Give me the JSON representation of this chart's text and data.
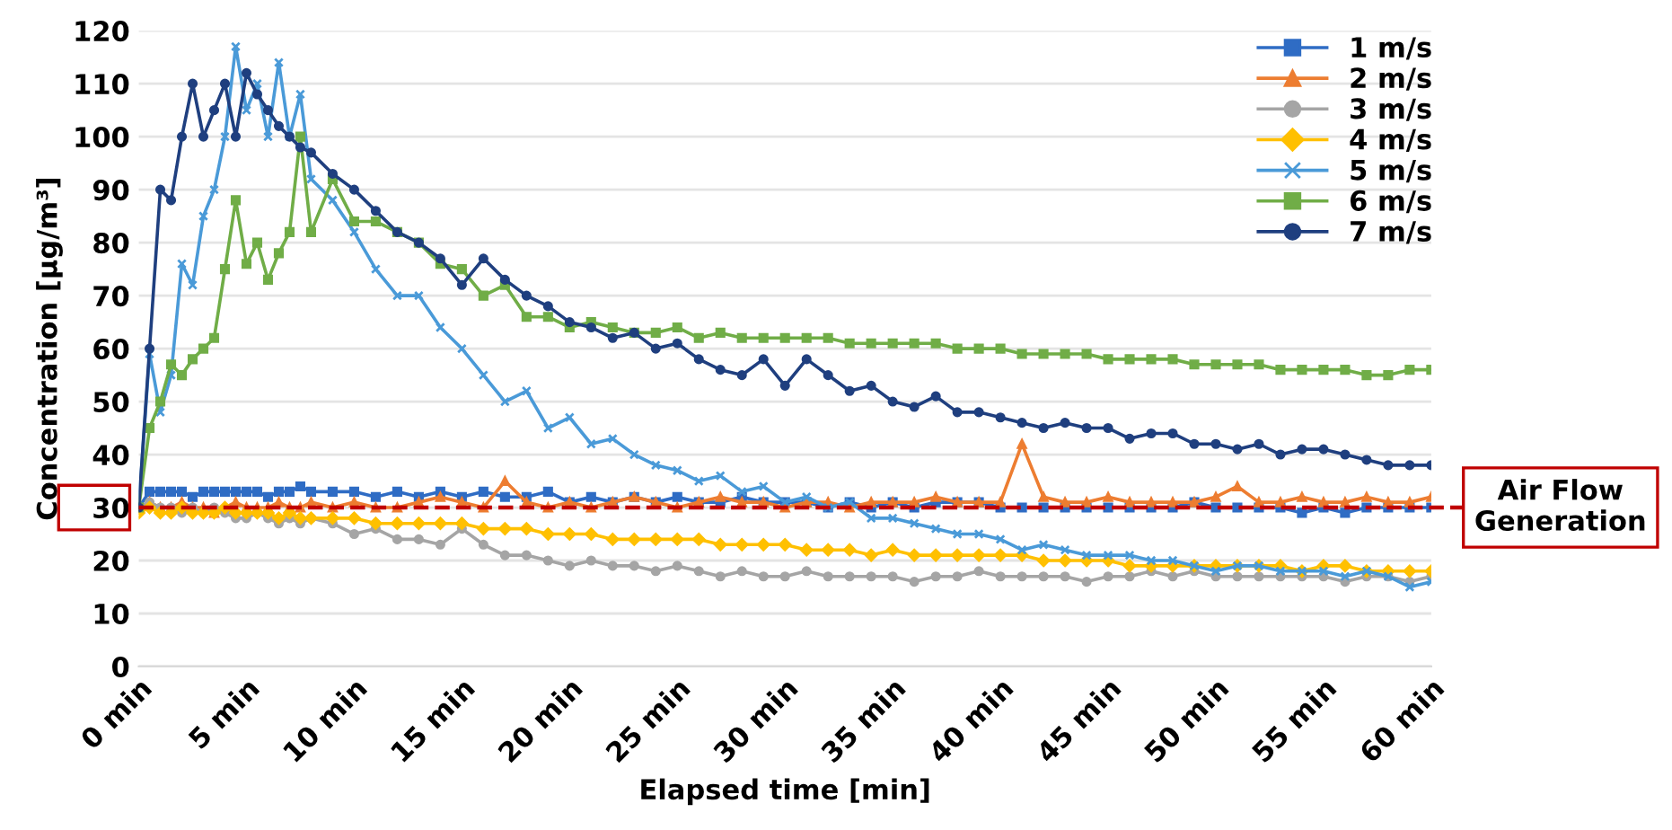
{
  "chart_data": {
    "type": "line",
    "xlabel": "Elapsed time [min]",
    "ylabel": "Concentration [μg/m³]",
    "x": [
      0,
      0.5,
      1,
      1.5,
      2,
      2.5,
      3,
      3.5,
      4,
      4.5,
      5,
      5.5,
      6,
      6.5,
      7,
      7.5,
      8,
      9,
      10,
      11,
      12,
      13,
      14,
      15,
      16,
      17,
      18,
      19,
      20,
      21,
      22,
      23,
      24,
      25,
      26,
      27,
      28,
      29,
      30,
      31,
      32,
      33,
      34,
      35,
      36,
      37,
      38,
      39,
      40,
      41,
      42,
      43,
      44,
      45,
      46,
      47,
      48,
      49,
      50,
      51,
      52,
      53,
      54,
      55,
      56,
      57,
      58,
      59,
      60
    ],
    "xlim": [
      0,
      60
    ],
    "xticks": [
      {
        "value": 0,
        "label": "0 min"
      },
      {
        "value": 5,
        "label": "5 min"
      },
      {
        "value": 10,
        "label": "10 min"
      },
      {
        "value": 15,
        "label": "15 min"
      },
      {
        "value": 20,
        "label": "20 min"
      },
      {
        "value": 25,
        "label": "25 min"
      },
      {
        "value": 30,
        "label": "30 min"
      },
      {
        "value": 35,
        "label": "35 min"
      },
      {
        "value": 40,
        "label": "40 min"
      },
      {
        "value": 45,
        "label": "45 min"
      },
      {
        "value": 50,
        "label": "50 min"
      },
      {
        "value": 55,
        "label": "55 min"
      },
      {
        "value": 60,
        "label": "60 min"
      }
    ],
    "ylim": [
      0,
      120
    ],
    "yticks": [
      0,
      10,
      20,
      30,
      40,
      50,
      60,
      70,
      80,
      90,
      100,
      110,
      120
    ],
    "grid": "y",
    "legend": "top right",
    "line_style": "solid",
    "ref_lines": [
      {
        "axis": "y",
        "value": 30,
        "label": "Air Flow\nGeneration",
        "color": "#c00000",
        "line_style": "dashed"
      }
    ],
    "series": [
      {
        "name": "1 m/s",
        "color": "#2f6cc4",
        "marker": "square",
        "values": [
          30,
          33,
          33,
          33,
          33,
          32,
          33,
          33,
          33,
          33,
          33,
          33,
          32,
          33,
          33,
          34,
          33,
          33,
          33,
          32,
          33,
          32,
          33,
          32,
          33,
          32,
          32,
          33,
          31,
          32,
          31,
          32,
          31,
          32,
          31,
          31,
          32,
          31,
          31,
          31,
          30,
          31,
          30,
          31,
          30,
          31,
          31,
          31,
          30,
          30,
          30,
          30,
          30,
          30,
          30,
          30,
          30,
          31,
          30,
          30,
          30,
          30,
          29,
          30,
          29,
          30,
          30,
          30,
          30
        ]
      },
      {
        "name": "2 m/s",
        "color": "#ed7d31",
        "marker": "triangle",
        "values": [
          30,
          31,
          30,
          30,
          31,
          30,
          30,
          29,
          30,
          31,
          30,
          30,
          30,
          31,
          30,
          30,
          31,
          30,
          31,
          30,
          30,
          31,
          32,
          31,
          30,
          35,
          31,
          30,
          31,
          30,
          31,
          32,
          31,
          30,
          31,
          32,
          31,
          31,
          30,
          31,
          31,
          30,
          31,
          31,
          31,
          32,
          31,
          31,
          31,
          42,
          32,
          31,
          31,
          32,
          31,
          31,
          31,
          31,
          32,
          34,
          31,
          31,
          32,
          31,
          31,
          32,
          31,
          31,
          32
        ]
      },
      {
        "name": "3 m/s",
        "color": "#a5a5a5",
        "marker": "circle",
        "values": [
          30,
          31,
          30,
          30,
          29,
          30,
          29,
          30,
          29,
          28,
          28,
          29,
          28,
          27,
          28,
          27,
          28,
          27,
          25,
          26,
          24,
          24,
          23,
          26,
          23,
          21,
          21,
          20,
          19,
          20,
          19,
          19,
          18,
          19,
          18,
          17,
          18,
          17,
          17,
          18,
          17,
          17,
          17,
          17,
          16,
          17,
          17,
          18,
          17,
          17,
          17,
          17,
          16,
          17,
          17,
          18,
          17,
          18,
          17,
          17,
          17,
          17,
          17,
          17,
          16,
          17,
          17,
          16,
          17
        ]
      },
      {
        "name": "4 m/s",
        "color": "#ffc000",
        "marker": "diamond",
        "values": [
          29,
          30,
          29,
          29,
          30,
          29,
          29,
          29,
          30,
          29,
          29,
          29,
          29,
          28,
          29,
          28,
          28,
          28,
          28,
          27,
          27,
          27,
          27,
          27,
          26,
          26,
          26,
          25,
          25,
          25,
          24,
          24,
          24,
          24,
          24,
          23,
          23,
          23,
          23,
          22,
          22,
          22,
          21,
          22,
          21,
          21,
          21,
          21,
          21,
          21,
          20,
          20,
          20,
          20,
          19,
          19,
          19,
          19,
          19,
          19,
          19,
          19,
          18,
          19,
          19,
          18,
          18,
          18,
          18
        ]
      },
      {
        "name": "5 m/s",
        "color": "#4a9ad8",
        "marker": "cross",
        "values": [
          30,
          59,
          48,
          55,
          76,
          72,
          85,
          90,
          100,
          117,
          105,
          110,
          100,
          114,
          100,
          108,
          92,
          88,
          82,
          75,
          70,
          70,
          64,
          60,
          55,
          50,
          52,
          45,
          47,
          42,
          43,
          40,
          38,
          37,
          35,
          36,
          33,
          34,
          31,
          32,
          30,
          31,
          28,
          28,
          27,
          26,
          25,
          25,
          24,
          22,
          23,
          22,
          21,
          21,
          21,
          20,
          20,
          19,
          18,
          19,
          19,
          18,
          18,
          18,
          17,
          18,
          17,
          15,
          16
        ]
      },
      {
        "name": "6 m/s",
        "color": "#70ad47",
        "marker": "square",
        "values": [
          30,
          45,
          50,
          57,
          55,
          58,
          60,
          62,
          75,
          88,
          76,
          80,
          73,
          78,
          82,
          100,
          82,
          92,
          84,
          84,
          82,
          80,
          76,
          75,
          70,
          72,
          66,
          66,
          64,
          65,
          64,
          63,
          63,
          64,
          62,
          63,
          62,
          62,
          62,
          62,
          62,
          61,
          61,
          61,
          61,
          61,
          60,
          60,
          60,
          59,
          59,
          59,
          59,
          58,
          58,
          58,
          58,
          57,
          57,
          57,
          57,
          56,
          56,
          56,
          56,
          55,
          55,
          56,
          56
        ]
      },
      {
        "name": "7 m/s",
        "color": "#1f3f7f",
        "marker": "circle",
        "values": [
          30,
          60,
          90,
          88,
          100,
          110,
          100,
          105,
          110,
          100,
          112,
          108,
          105,
          102,
          100,
          98,
          97,
          93,
          90,
          86,
          82,
          80,
          77,
          72,
          77,
          73,
          70,
          68,
          65,
          64,
          62,
          63,
          60,
          61,
          58,
          56,
          55,
          58,
          53,
          58,
          55,
          52,
          53,
          50,
          49,
          51,
          48,
          48,
          47,
          46,
          45,
          46,
          45,
          45,
          43,
          44,
          44,
          42,
          42,
          41,
          42,
          40,
          41,
          41,
          40,
          39,
          38,
          38,
          38
        ]
      }
    ]
  }
}
